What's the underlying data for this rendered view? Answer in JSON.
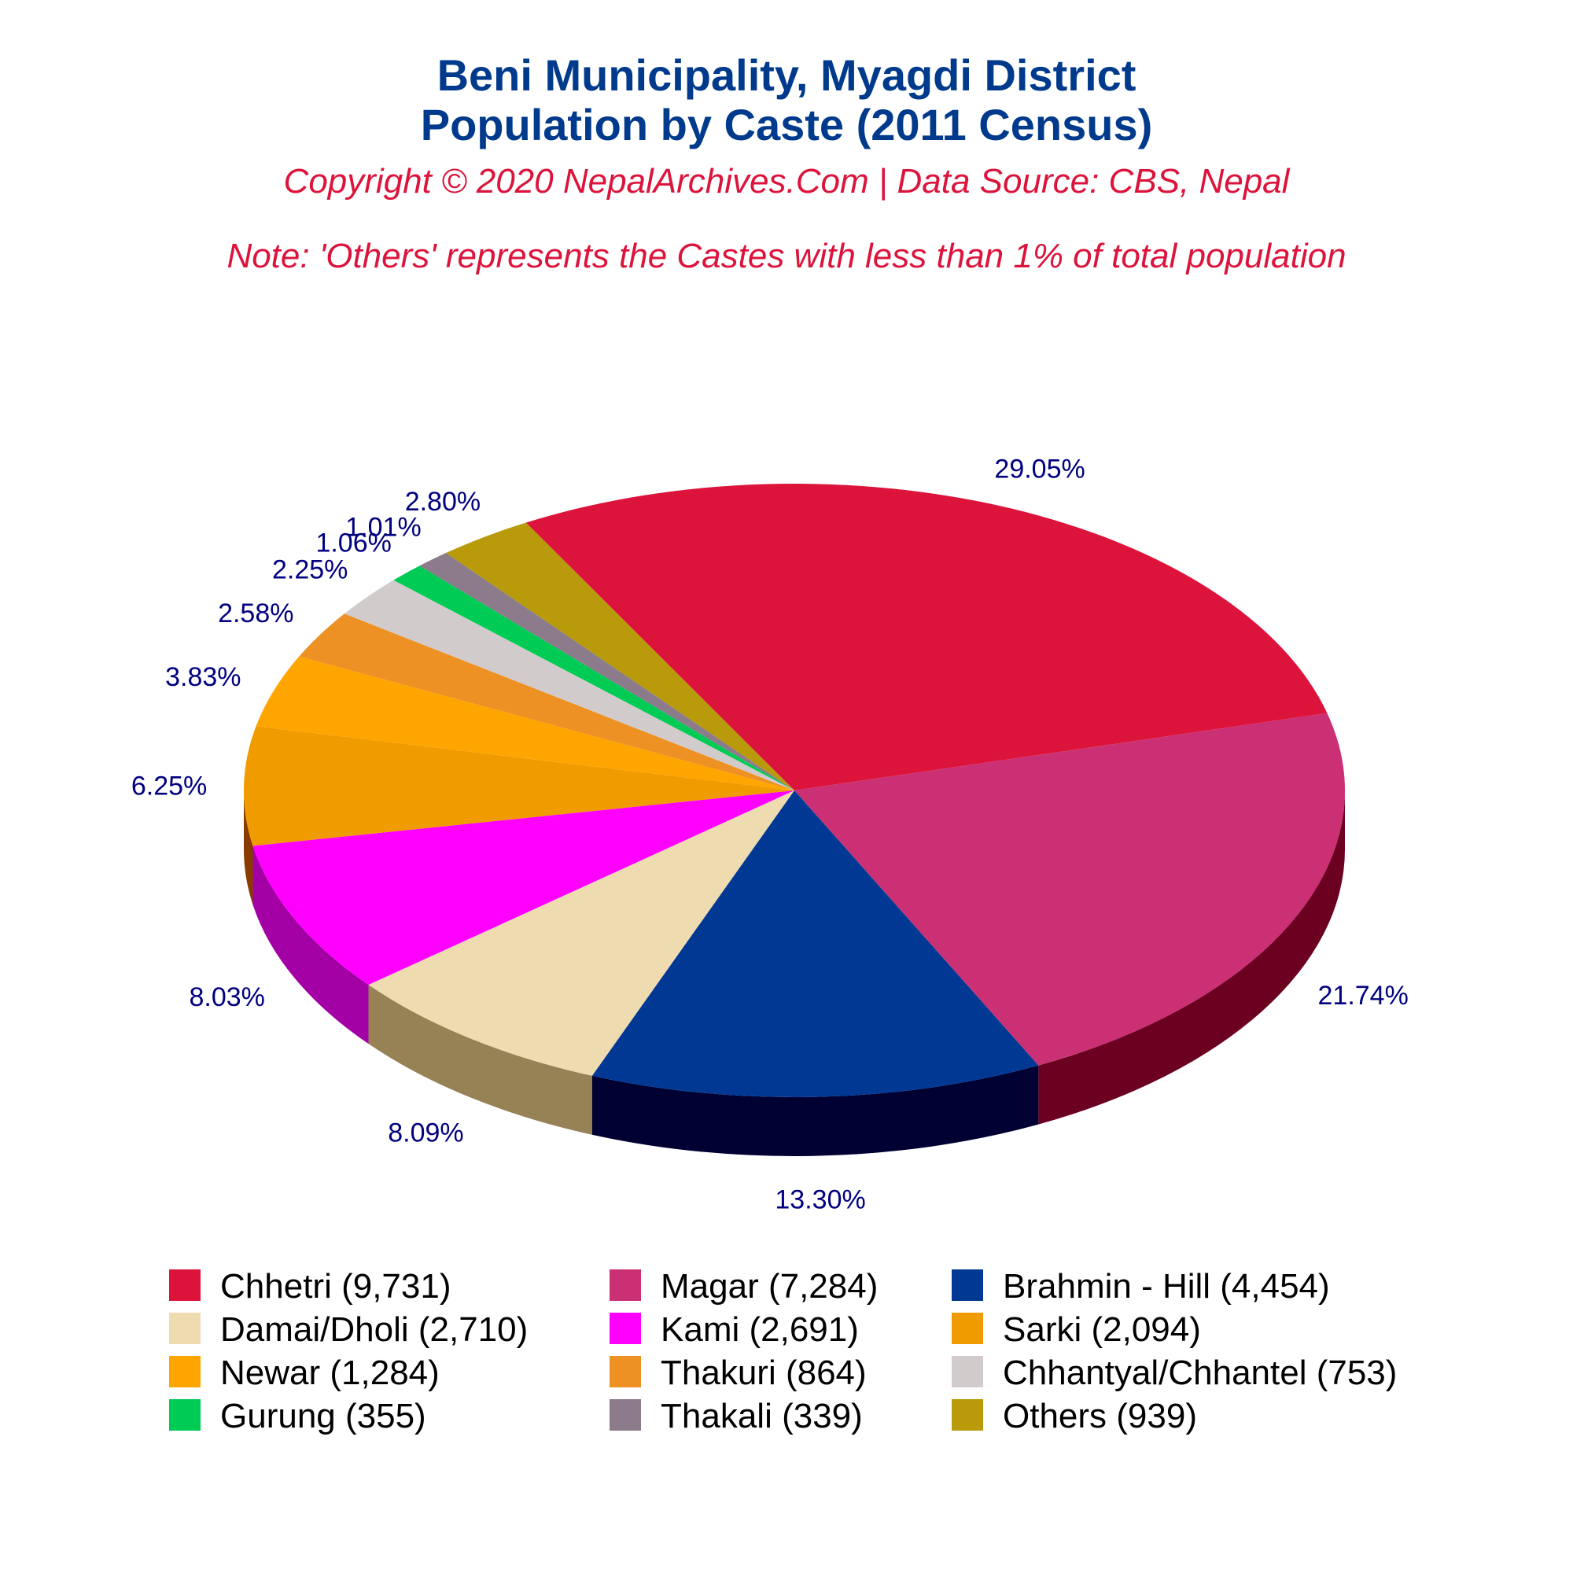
{
  "title_line1": "Beni Municipality, Myagdi District",
  "title_line2": "Population by Caste (2011 Census)",
  "copyright": "Copyright © 2020 NepalArchives.Com | Data Source: CBS, Nepal",
  "note": "Note: 'Others' represents the Castes with less than 1% of total population",
  "chart_data": {
    "type": "pie",
    "style": "3d",
    "title": "Beni Municipality, Myagdi District Population by Caste (2011 Census)",
    "legend_position": "bottom",
    "slices": [
      {
        "name": "Chhetri",
        "value": 9731,
        "percent_label": "29.05%",
        "legend_label": "Chhetri (9,731)",
        "color": "#dc143c",
        "side_color": "#8b0a26"
      },
      {
        "name": "Magar",
        "value": 7284,
        "percent_label": "21.74%",
        "legend_label": "Magar (7,284)",
        "color": "#cc3074",
        "side_color": "#6b0020"
      },
      {
        "name": "Brahmin - Hill",
        "value": 4454,
        "percent_label": "13.30%",
        "legend_label": "Brahmin - Hill (4,454)",
        "color": "#003893",
        "side_color": "#000033"
      },
      {
        "name": "Damai/Dholi",
        "value": 2710,
        "percent_label": "8.09%",
        "legend_label": "Damai/Dholi (2,710)",
        "color": "#eedbb0",
        "side_color": "#968255"
      },
      {
        "name": "Kami",
        "value": 2691,
        "percent_label": "8.03%",
        "legend_label": "Kami (2,691)",
        "color": "#ff00ff",
        "side_color": "#a300a6"
      },
      {
        "name": "Sarki",
        "value": 2094,
        "percent_label": "6.25%",
        "legend_label": "Sarki (2,094)",
        "color": "#f09c00",
        "side_color": "#8a3c00"
      },
      {
        "name": "Newar",
        "value": 1284,
        "percent_label": "3.83%",
        "legend_label": "Newar (1,284)",
        "color": "#ffa500",
        "side_color": "#9a4400"
      },
      {
        "name": "Thakuri",
        "value": 864,
        "percent_label": "2.58%",
        "legend_label": "Thakuri (864)",
        "color": "#ee9124",
        "side_color": "#8a4a00"
      },
      {
        "name": "Chhantyal/Chhantel",
        "value": 753,
        "percent_label": "2.25%",
        "legend_label": "Chhantyal/Chhantel (753)",
        "color": "#d1cccb",
        "side_color": "#807b7a"
      },
      {
        "name": "Gurung",
        "value": 355,
        "percent_label": "1.06%",
        "legend_label": "Gurung (355)",
        "color": "#00cc55",
        "side_color": "#006628"
      },
      {
        "name": "Thakali",
        "value": 339,
        "percent_label": "1.01%",
        "legend_label": "Thakali (339)",
        "color": "#8b7b8b",
        "side_color": "#4a3f4a"
      },
      {
        "name": "Others",
        "value": 939,
        "percent_label": "2.80%",
        "legend_label": "Others (939)",
        "color": "#b89a0a",
        "side_color": "#6a5600"
      }
    ]
  }
}
